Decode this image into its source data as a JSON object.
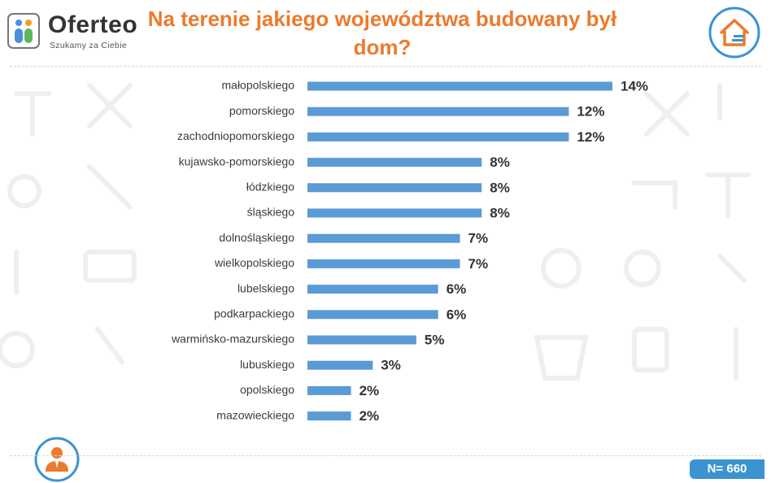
{
  "brand": {
    "name": "Oferteo",
    "tagline": "Szukamy za Ciebie"
  },
  "title": "Na terenie jakiego województwa budowany był dom?",
  "sample": "N= 660",
  "colors": {
    "bar": "#5b9bd5",
    "title": "#ec7a2c",
    "accent": "#3b93d1"
  },
  "icons": {
    "house": "house-icon",
    "person": "person-icon"
  },
  "chart_data": {
    "type": "bar",
    "orientation": "horizontal",
    "title": "Na terenie jakiego województwa budowany był dom?",
    "categories": [
      "małopolskiego",
      "pomorskiego",
      "zachodniopomorskiego",
      "kujawsko-pomorskiego",
      "łódzkiego",
      "śląskiego",
      "dolnośląskiego",
      "wielkopolskiego",
      "lubelskiego",
      "podkarpackiego",
      "warmińsko-mazurskiego",
      "lubuskiego",
      "opolskiego",
      "mazowieckiego"
    ],
    "values": [
      14,
      12,
      12,
      8,
      8,
      8,
      7,
      7,
      6,
      6,
      5,
      3,
      2,
      2
    ],
    "value_labels": [
      "14%",
      "12%",
      "12%",
      "8%",
      "8%",
      "8%",
      "7%",
      "7%",
      "6%",
      "6%",
      "5%",
      "3%",
      "2%",
      "2%"
    ],
    "unit": "%",
    "xlabel": "",
    "ylabel": "",
    "xlim": [
      0,
      14
    ],
    "grid": false,
    "legend": "none"
  }
}
